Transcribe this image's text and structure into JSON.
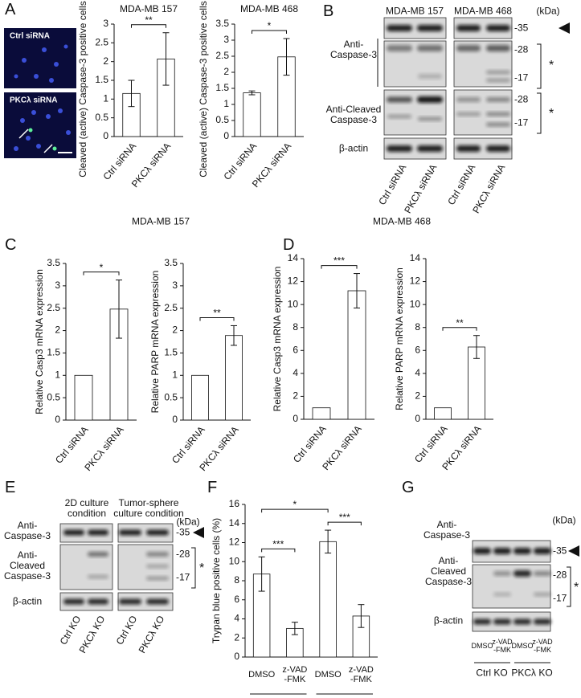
{
  "figure": {
    "panel_letters": [
      "A",
      "B",
      "C",
      "D",
      "E",
      "F",
      "G"
    ],
    "panel_a_images": [
      "Ctrl siRNA",
      "PKCλ siRNA"
    ],
    "panel_c_title": "MDA-MB 157",
    "panel_d_title": "MDA-MB 468",
    "blot_b": {
      "cell_lines": [
        "MDA-MB 157",
        "MDA-MB 468"
      ],
      "unit": "(kDa)",
      "rows": [
        "Anti-\nCaspase-3",
        "Anti-Cleaved\nCaspase-3",
        "β-actin"
      ],
      "markers": [
        "-35",
        "-28",
        "-17",
        "-28",
        "-17"
      ],
      "asterisks": [
        "*",
        "*"
      ],
      "lanes": [
        "Ctrl siRNA",
        "PKCλ siRNA",
        "Ctrl siRNA",
        "PKCλ siRNA"
      ]
    },
    "blot_e": {
      "conditions": [
        "2D culture\ncondition",
        "Tumor-sphere\nculture condition"
      ],
      "unit": "(kDa)",
      "rows": [
        "Anti-\nCaspase-3",
        "Anti-\nCleaved\nCaspase-3",
        "β-actin"
      ],
      "markers": [
        "-35",
        "-28",
        "-17"
      ],
      "asterisk": "*",
      "lanes": [
        "Ctrl KO",
        "PKCλ KO",
        "Ctrl KO",
        "PKCλ KO"
      ]
    },
    "blot_g": {
      "unit": "(kDa)",
      "rows": [
        "Anti-\nCaspase-3",
        "Anti-\nCleaved\nCaspase-3",
        "β-actin"
      ],
      "markers": [
        "-35",
        "-28",
        "-17"
      ],
      "asterisk": "*",
      "lanes": [
        "DMSO",
        "z-VAD\n-FMK",
        "DMSO",
        "z-VAD\n-FMK"
      ],
      "groups": [
        "Ctrl KO",
        "PKCλ KO"
      ]
    }
  },
  "chart_data": [
    {
      "type": "bar",
      "title": "MDA-MB 157",
      "y_label": "Cleaved (active) Caspase-3 positive cells (%)",
      "categories": [
        "Ctrl siRNA",
        "PKCλ siRNA"
      ],
      "values": [
        1.15,
        2.07
      ],
      "errors": [
        0.35,
        0.7
      ],
      "color": "#ffffff",
      "ylim": [
        0,
        3
      ],
      "yticks": [
        0,
        0.5,
        1,
        1.5,
        2,
        2.5,
        3
      ],
      "significance": [
        {
          "label": "**",
          "between": [
            0,
            1
          ]
        }
      ]
    },
    {
      "type": "bar",
      "title": "MDA-MB 468",
      "y_label": "Cleaved (active) Caspase-3 positive cells (%)",
      "categories": [
        "Ctrl siRNA",
        "PKCλ siRNA"
      ],
      "values": [
        1.36,
        2.48
      ],
      "errors": [
        0.06,
        0.57
      ],
      "color": "#ffffff",
      "ylim": [
        0,
        3.5
      ],
      "yticks": [
        0,
        0.5,
        1,
        1.5,
        2,
        2.5,
        3,
        3.5
      ],
      "significance": [
        {
          "label": "*",
          "between": [
            0,
            1
          ]
        }
      ]
    },
    {
      "type": "bar",
      "y_label": "Relative Casp3 mRNA expression",
      "categories": [
        "Ctrl siRNA",
        "PKCλ siRNA"
      ],
      "values": [
        1,
        2.48
      ],
      "errors": [
        0,
        0.65
      ],
      "color": "#ffffff",
      "ylim": [
        0,
        3.5
      ],
      "yticks": [
        0,
        0.5,
        1,
        1.5,
        2,
        2.5,
        3,
        3.5
      ],
      "significance": [
        {
          "label": "*",
          "between": [
            0,
            1
          ]
        }
      ]
    },
    {
      "type": "bar",
      "y_label": "Relative PARP mRNA expression",
      "categories": [
        "Ctrl siRNA",
        "PKCλ siRNA"
      ],
      "values": [
        1,
        1.89
      ],
      "errors": [
        0,
        0.22
      ],
      "color": "#ffffff",
      "ylim": [
        0,
        3.5
      ],
      "yticks": [
        0,
        0.5,
        1,
        1.5,
        2,
        2.5,
        3,
        3.5
      ],
      "significance": [
        {
          "label": "**",
          "between": [
            0,
            1
          ]
        }
      ]
    },
    {
      "type": "bar",
      "y_label": "Relative Casp3 mRNA expression",
      "categories": [
        "Ctrl siRNA",
        "PKCλ siRNA"
      ],
      "values": [
        1,
        11.2
      ],
      "errors": [
        0,
        1.5
      ],
      "color": "#ffffff",
      "ylim": [
        0,
        14
      ],
      "yticks": [
        0,
        2,
        4,
        6,
        8,
        10,
        12,
        14
      ],
      "significance": [
        {
          "label": "***",
          "between": [
            0,
            1
          ]
        }
      ]
    },
    {
      "type": "bar",
      "y_label": "Relative PARP mRNA expression",
      "categories": [
        "Ctrl siRNA",
        "PKCλ siRNA"
      ],
      "values": [
        1,
        6.3
      ],
      "errors": [
        0,
        1.0
      ],
      "color": "#ffffff",
      "ylim": [
        0,
        14
      ],
      "yticks": [
        0,
        2,
        4,
        6,
        8,
        10,
        12,
        14
      ],
      "significance": [
        {
          "label": "**",
          "between": [
            0,
            1
          ]
        }
      ]
    },
    {
      "type": "bar",
      "y_label": "Trypan blue positive cells (%)",
      "categories": [
        "DMSO",
        "z-VAD\n-FMK",
        "DMSO",
        "z-VAD\n-FMK"
      ],
      "group_labels": [
        "Ctrl KO",
        "PKCλ KO"
      ],
      "values": [
        8.7,
        3.0,
        12.1,
        4.3
      ],
      "errors": [
        1.8,
        0.65,
        1.2,
        1.2
      ],
      "color": "#ffffff",
      "ylim": [
        0,
        16
      ],
      "yticks": [
        0,
        2,
        4,
        6,
        8,
        10,
        12,
        14,
        16
      ],
      "significance": [
        {
          "label": "***",
          "between": [
            0,
            1
          ]
        },
        {
          "label": "***",
          "between": [
            2,
            3
          ]
        },
        {
          "label": "*",
          "between": [
            0,
            2
          ]
        }
      ]
    }
  ]
}
